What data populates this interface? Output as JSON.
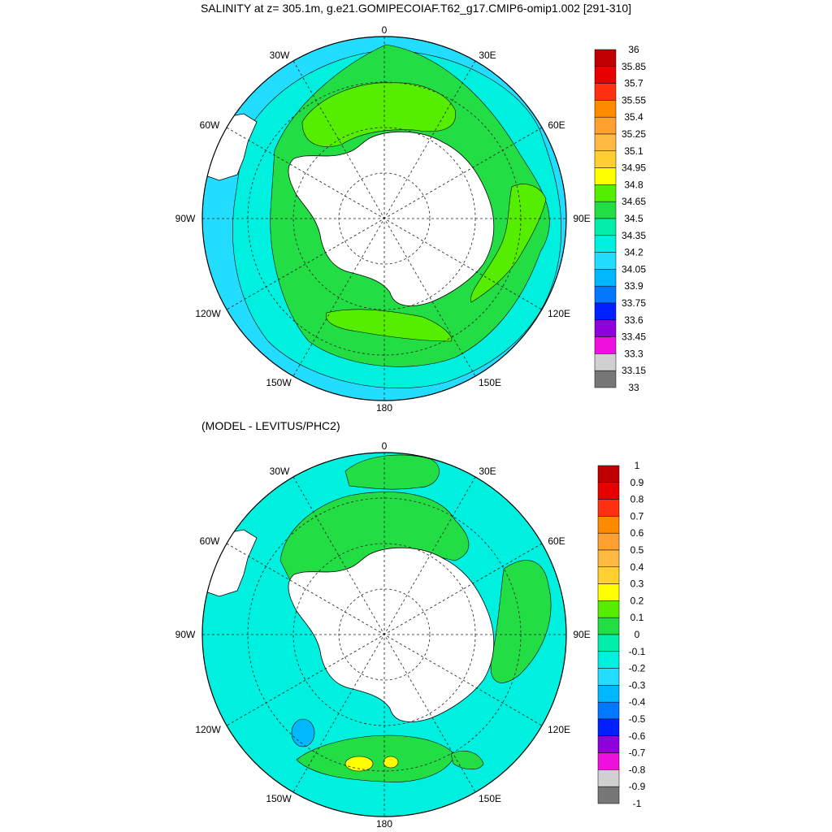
{
  "title": "SALINITY at z= 305.1m, g.e21.GOMIPECOIAF.T62_g17.CMIP6-omip1.002 [291-310]",
  "subtitle": "(MODEL - LEVITUS/PHC2)",
  "longitude_labels": [
    "0",
    "30E",
    "60E",
    "90E",
    "120E",
    "150E",
    "180",
    "150W",
    "120W",
    "90W",
    "60W",
    "30W"
  ],
  "top_colorbar": {
    "levels": [
      "36",
      "35.85",
      "35.7",
      "35.55",
      "35.4",
      "35.25",
      "35.1",
      "34.95",
      "34.8",
      "34.65",
      "34.5",
      "34.35",
      "34.2",
      "34.05",
      "33.9",
      "33.75",
      "33.6",
      "33.45",
      "33.3",
      "33.15",
      "33"
    ],
    "colors": [
      "#c00000",
      "#e80000",
      "#ff3010",
      "#ff8a00",
      "#ffa030",
      "#ffb840",
      "#ffd030",
      "#ffff00",
      "#55ee00",
      "#22dd44",
      "#00eeaa",
      "#00f0e0",
      "#22ddff",
      "#00b8ff",
      "#0078ff",
      "#0020ff",
      "#9000dd",
      "#ee10dd",
      "#d0d0d0",
      "#777777"
    ]
  },
  "bottom_colorbar": {
    "levels": [
      "1",
      "0.9",
      "0.8",
      "0.7",
      "0.6",
      "0.5",
      "0.4",
      "0.3",
      "0.2",
      "0.1",
      "0",
      "-0.1",
      "-0.2",
      "-0.3",
      "-0.4",
      "-0.5",
      "-0.6",
      "-0.7",
      "-0.8",
      "-0.9",
      "-1"
    ],
    "colors": [
      "#c00000",
      "#e80000",
      "#ff3010",
      "#ff8a00",
      "#ffa030",
      "#ffb840",
      "#ffd030",
      "#ffff00",
      "#55ee00",
      "#22dd44",
      "#00eeaa",
      "#00f0e0",
      "#22ddff",
      "#00b8ff",
      "#0078ff",
      "#0020ff",
      "#9000dd",
      "#ee10dd",
      "#d0d0d0",
      "#777777"
    ]
  },
  "colors": {
    "land": "#ffffff",
    "top_ocean": "#22ddff",
    "top_ring_mid": "#00f0e0",
    "top_ring_inner": "#22dd44",
    "top_core": "#55ee00",
    "bottom_ocean": "#00f0e0",
    "bottom_ring": "#22dd44",
    "bottom_core": "#55ee00",
    "bottom_max": "#ffff00",
    "bottom_low": "#00b8ff"
  }
}
